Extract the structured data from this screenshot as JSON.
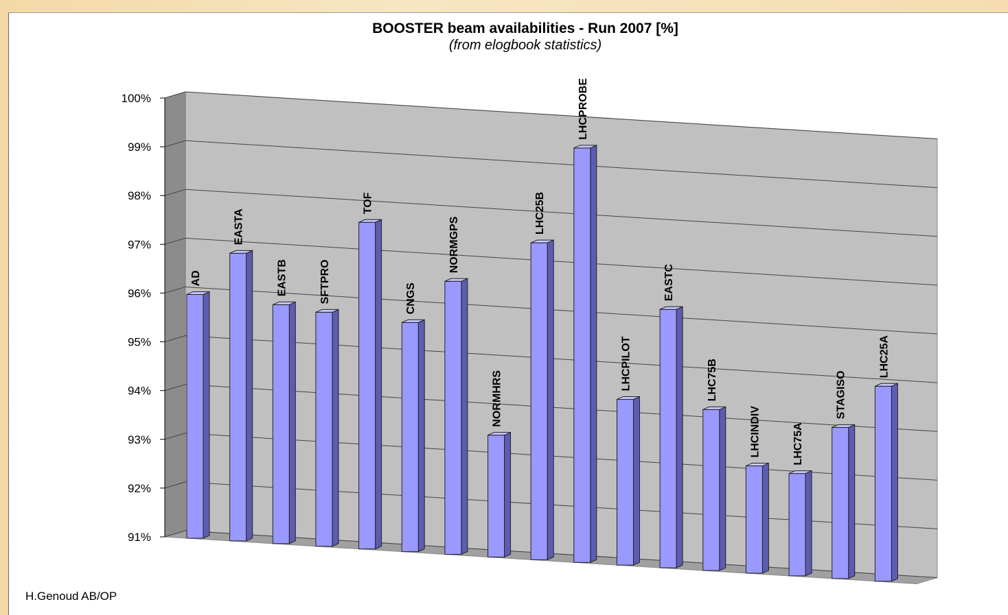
{
  "chart_data": {
    "type": "bar",
    "title": "BOOSTER beam availabilities - Run 2007 [%]",
    "subtitle": "(from elogbook statistics)",
    "categories": [
      "AD",
      "EASTA",
      "EASTB",
      "SFTPRO",
      "TOF",
      "CNGS",
      "NORMGPS",
      "NORMHRS",
      "LHC25B",
      "LHCPROBE",
      "LHCPILOT",
      "EASTC",
      "LHC75B",
      "LHCINDIV",
      "LHC75A",
      "STAGISO",
      "LHC25A"
    ],
    "values": [
      96.0,
      96.9,
      95.9,
      95.8,
      97.7,
      95.7,
      96.6,
      93.5,
      97.5,
      99.5,
      94.4,
      96.3,
      94.3,
      93.2,
      93.1,
      94.1,
      95.0
    ],
    "ylim": [
      91,
      100
    ],
    "yticks": [
      "91%",
      "92%",
      "93%",
      "94%",
      "95%",
      "96%",
      "97%",
      "98%",
      "99%",
      "100%"
    ],
    "grid": true,
    "legend": "none",
    "colors": {
      "bar_front": "#9999ff",
      "bar_side": "#5c5cb0",
      "bar_top": "#c7c7ff",
      "wall": "#c0c0c0",
      "floor": "#a0a0a0"
    }
  },
  "footer": "H.Genoud AB/OP"
}
